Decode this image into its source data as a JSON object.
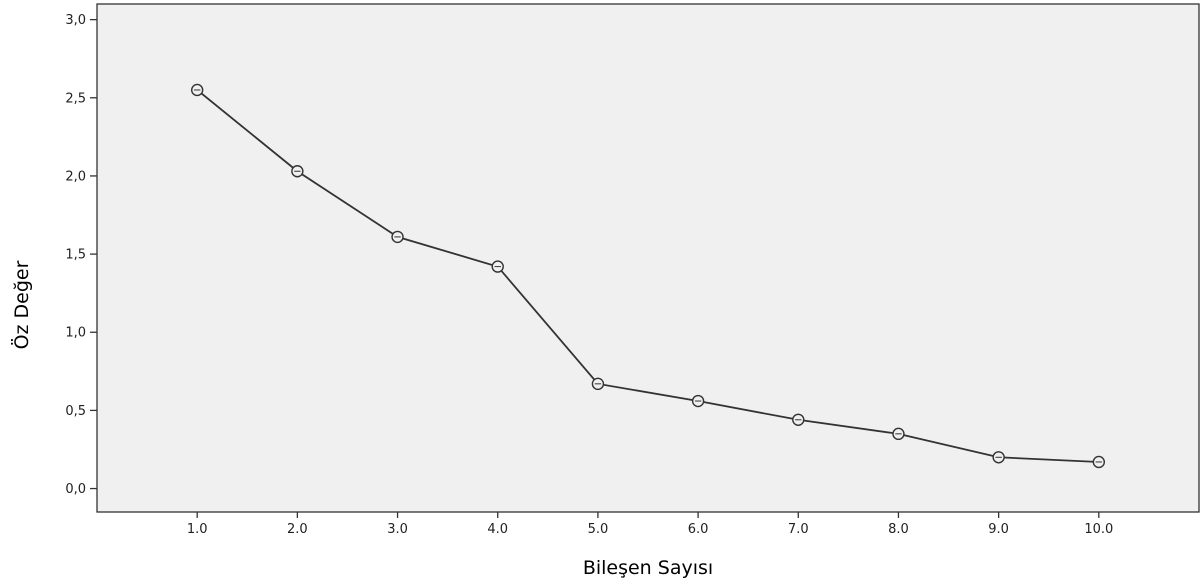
{
  "chart_data": {
    "type": "line",
    "title": "",
    "xlabel": "Bileşen Sayısı",
    "ylabel": "Öz Değer",
    "x": [
      1,
      2,
      3,
      4,
      5,
      6,
      7,
      8,
      9,
      10
    ],
    "x_tick_labels": [
      "1.0",
      "2.0",
      "3.0",
      "4.0",
      "5.0",
      "6.0",
      "7.0",
      "8.0",
      "9.0",
      "10.0"
    ],
    "y_ticks": [
      0,
      0.5,
      1,
      1.5,
      2,
      2.5,
      3
    ],
    "y_tick_labels": [
      "0,0",
      "0,5",
      "1,0",
      "1,5",
      "2,0",
      "2,5",
      "3,0"
    ],
    "series": [
      {
        "values": [
          2.55,
          2.03,
          1.61,
          1.42,
          0.67,
          0.56,
          0.44,
          0.35,
          0.2,
          0.17
        ]
      }
    ],
    "xlim": [
      0,
      11
    ],
    "ylim": [
      -0.15,
      3.1
    ],
    "grid": false,
    "legend": "none",
    "marker": "open-circle",
    "colors": {
      "plot_background": "#f0f0f0",
      "line": "#333333",
      "axis": "#333333"
    }
  }
}
